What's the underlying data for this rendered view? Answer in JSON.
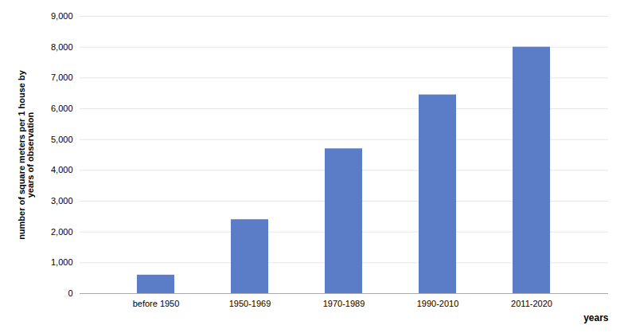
{
  "chart_data": {
    "type": "bar",
    "categories": [
      "before 1950",
      "1950-1969",
      "1970-1989",
      "1990-2010",
      "2011-2020"
    ],
    "values": [
      600,
      2400,
      4700,
      6450,
      8000
    ],
    "color": "#5b7dc8",
    "ylabel": "number of square meters per 1 house by\nyears of observation",
    "xlabel": "years",
    "ylim": [
      0,
      9000
    ],
    "yticks": [
      0,
      1000,
      2000,
      3000,
      4000,
      5000,
      6000,
      7000,
      8000,
      9000
    ],
    "grid": true
  }
}
